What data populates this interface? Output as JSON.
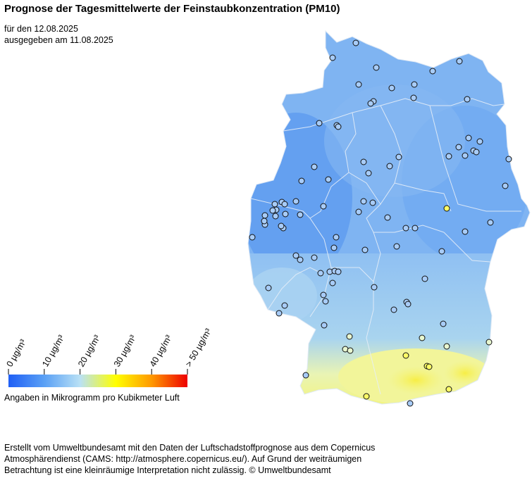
{
  "title": "Prognose der Tagesmittelwerte der Feinstaubkonzentration (PM10)",
  "valid_date_line": "für den 12.08.2025",
  "issued_line": "ausgegeben am 11.08.2025",
  "legend": {
    "ticks": [
      "0  µg/m³",
      "10  µg/m³",
      "20  µg/m³",
      "30  µg/m³",
      "40  µg/m³",
      "> 50  µg/m³"
    ],
    "colors": [
      "#1f5ff5",
      "#5aa0f5",
      "#b9e1f5",
      "#ffff00",
      "#ff9900",
      "#ee0000"
    ],
    "note": "Angaben in Mikrogramm pro Kubikmeter Luft"
  },
  "footer": {
    "line1": "Erstellt vom Umweltbundesamt mit den Daten der Luftschadstoffprognose aus dem Copernicus",
    "line2": "Atmosphärendienst (CAMS: http://atmosphere.copernicus.eu/). Auf Grund der weiträumigen",
    "line3": "Betrachtung ist eine kleinräumige Interpretation nicht zulässig. © Umweltbundesamt"
  },
  "map_colors": {
    "north": "#7fb4f2",
    "west": "#5f9cf0",
    "east": "#6ea8f2",
    "southwest": "#a9d2f2",
    "south_yellow": "#f2f59a",
    "south_bright": "#f5f36a",
    "station_fill_default": "#a8ccf8",
    "station_fill_yellow": "#ffff66",
    "station_fill_light": "#e8f7d0"
  }
}
